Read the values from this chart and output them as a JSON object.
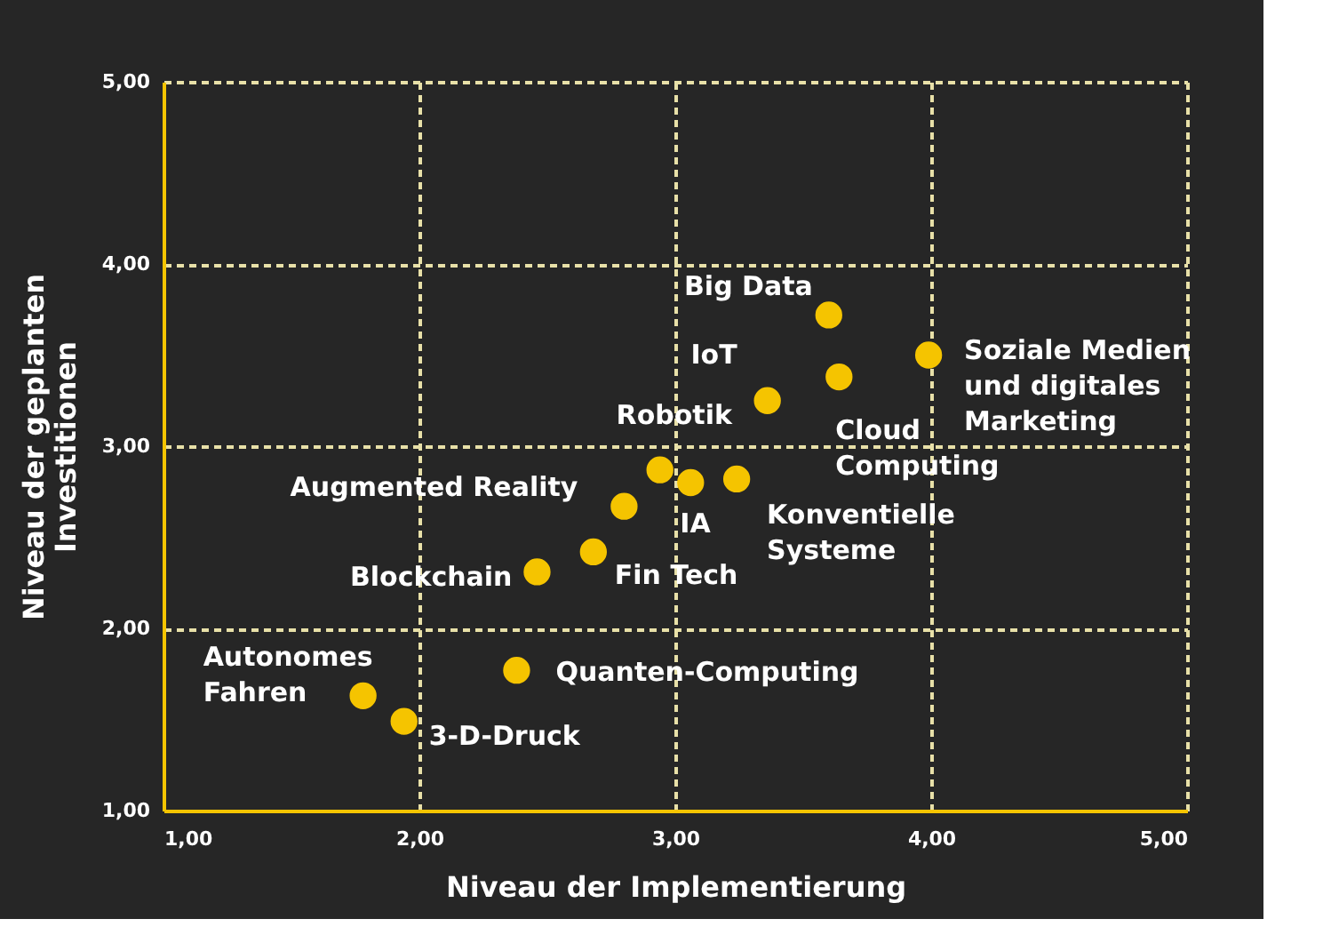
{
  "chart_data": {
    "type": "scatter",
    "xlabel": "Niveau der Implementierung",
    "ylabel": "Niveau der geplanten\nInvestitionen",
    "x": [
      3.6,
      3.36,
      3.64,
      3.99,
      2.94,
      2.8,
      3.06,
      3.24,
      2.68,
      2.46,
      1.78,
      1.94,
      2.38
    ],
    "values": [
      3.72,
      3.25,
      3.38,
      3.5,
      2.87,
      2.67,
      2.8,
      2.82,
      2.42,
      2.31,
      1.63,
      1.49,
      1.77
    ],
    "color": "#f5c400",
    "marker": "circle",
    "xlim": [
      1,
      5
    ],
    "ylim": [
      1,
      5
    ],
    "xticks": [
      {
        "value": 1,
        "label": "1,00"
      },
      {
        "value": 2,
        "label": "2,00"
      },
      {
        "value": 3,
        "label": "3,00"
      },
      {
        "value": 4,
        "label": "4,00"
      },
      {
        "value": 5,
        "label": "5,00"
      }
    ],
    "yticks": [
      {
        "value": 1,
        "label": "1,00"
      },
      {
        "value": 2,
        "label": "2,00"
      },
      {
        "value": 3,
        "label": "3,00"
      },
      {
        "value": 4,
        "label": "4,00"
      },
      {
        "value": 5,
        "label": "5,00"
      }
    ],
    "grid": true,
    "annotations": [
      {
        "text": "Big Data",
        "x": 3.6,
        "y": 3.72
      },
      {
        "text": "IoT",
        "x": 3.36,
        "y": 3.25
      },
      {
        "text": "Cloud\nComputing",
        "x": 3.64,
        "y": 3.38
      },
      {
        "text": "Soziale Medien\nund digitales\nMarketing",
        "x": 3.99,
        "y": 3.5
      },
      {
        "text": "Robotik",
        "x": 2.94,
        "y": 2.87
      },
      {
        "text": "Augmented Reality",
        "x": 2.8,
        "y": 2.67
      },
      {
        "text": "IA",
        "x": 3.06,
        "y": 2.8
      },
      {
        "text": "Konventielle\nSysteme",
        "x": 3.24,
        "y": 2.82
      },
      {
        "text": "Fin Tech",
        "x": 2.68,
        "y": 2.42
      },
      {
        "text": "Blockchain",
        "x": 2.46,
        "y": 2.31
      },
      {
        "text": "Autonomes\nFahren",
        "x": 1.78,
        "y": 1.63
      },
      {
        "text": "3-D-Druck",
        "x": 1.94,
        "y": 1.49
      },
      {
        "text": "Quanten-Computing",
        "x": 2.38,
        "y": 1.77
      }
    ]
  }
}
